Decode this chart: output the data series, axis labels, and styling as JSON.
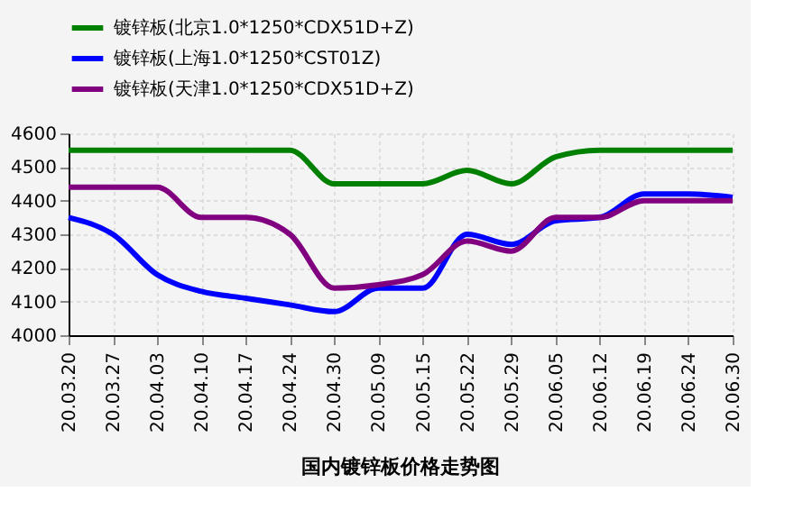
{
  "chart_data": {
    "type": "line",
    "title": "国内镀锌板价格走势图",
    "categories": [
      "20.03.20",
      "20.03.27",
      "20.04.03",
      "20.04.10",
      "20.04.17",
      "20.04.24",
      "20.04.30",
      "20.05.09",
      "20.05.15",
      "20.05.22",
      "20.05.29",
      "20.06.05",
      "20.06.12",
      "20.06.19",
      "20.06.24",
      "20.06.30"
    ],
    "series": [
      {
        "name": "镀锌板(北京1.0*1250*CDX51D+Z)",
        "color": "#008000",
        "values": [
          4550,
          4550,
          4550,
          4550,
          4550,
          4550,
          4450,
          4450,
          4450,
          4490,
          4450,
          4530,
          4550,
          4550,
          4550,
          4550
        ]
      },
      {
        "name": "镀锌板(上海1.0*1250*CST01Z)",
        "color": "#0000ff",
        "values": [
          4350,
          4300,
          4180,
          4130,
          4110,
          4090,
          4070,
          4140,
          4140,
          4300,
          4270,
          4340,
          4350,
          4420,
          4420,
          4410
        ]
      },
      {
        "name": "镀锌板(天津1.0*1250*CDX51D+Z)",
        "color": "#800080",
        "values": [
          4440,
          4440,
          4440,
          4350,
          4350,
          4300,
          4140,
          4150,
          4180,
          4280,
          4250,
          4350,
          4350,
          4400,
          4400,
          4400
        ]
      }
    ],
    "ylim": [
      4000,
      4600
    ],
    "yticks": [
      4000,
      4100,
      4200,
      4300,
      4400,
      4500,
      4600
    ],
    "grid": true,
    "legend": "top",
    "line_style": "solid",
    "marker": "none"
  }
}
